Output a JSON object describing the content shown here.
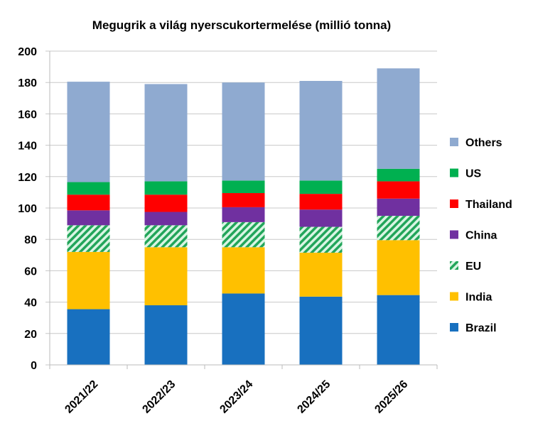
{
  "chart_data": {
    "type": "stacked-bar",
    "title": "Megugrik a világ nyerscukortermelése (millió tonna)",
    "xlabel": "",
    "ylabel": "",
    "ylim": [
      0,
      200
    ],
    "yticks": [
      0,
      20,
      40,
      60,
      80,
      100,
      120,
      140,
      160,
      180,
      200
    ],
    "grid": true,
    "legend_position": "right",
    "categories": [
      "2021/22",
      "2022/23",
      "2023/24",
      "2024/25",
      "2025/26"
    ],
    "series": [
      {
        "name": "Brazil",
        "color": "#1870BF",
        "pattern": "solid",
        "values": [
          35.5,
          38,
          45.5,
          43.5,
          44.5
        ]
      },
      {
        "name": "India",
        "color": "#FFC000",
        "pattern": "solid",
        "values": [
          36.5,
          37,
          29.5,
          28,
          35
        ]
      },
      {
        "name": "EU",
        "color": "#22A55A",
        "pattern": "diagonal-stripes",
        "values": [
          17,
          14,
          16,
          16.5,
          15.5
        ]
      },
      {
        "name": "China",
        "color": "#7030A0",
        "pattern": "solid",
        "values": [
          9.5,
          8.5,
          9.5,
          11,
          11
        ]
      },
      {
        "name": "Thailand",
        "color": "#FF0000",
        "pattern": "solid",
        "values": [
          10,
          11,
          9,
          10,
          11
        ]
      },
      {
        "name": "US",
        "color": "#00B050",
        "pattern": "solid",
        "values": [
          8,
          8.5,
          8,
          8.5,
          8
        ]
      },
      {
        "name": "Others",
        "color": "#8FAAD0",
        "pattern": "solid",
        "values": [
          64,
          62,
          62.5,
          63.5,
          64
        ]
      }
    ]
  }
}
